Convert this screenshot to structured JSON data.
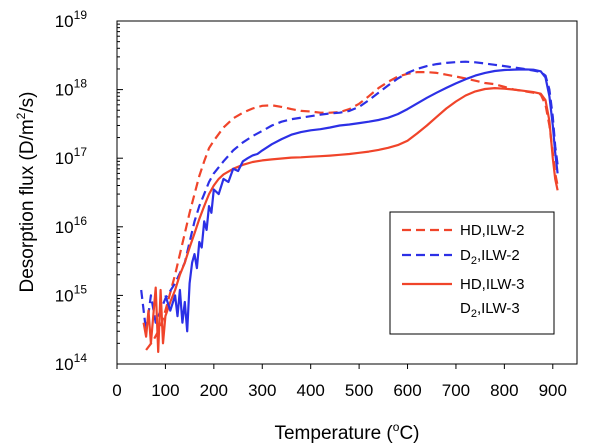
{
  "chart_data": {
    "type": "line",
    "title": "",
    "xlabel_main": "Temperature (",
    "xlabel_sup": "o",
    "xlabel_tail": "C)",
    "ylabel_main": "Desorption flux (D/m",
    "ylabel_sup": "2",
    "ylabel_tail": "/s)",
    "xlim": [
      0,
      950
    ],
    "ylim_log10": [
      14,
      19
    ],
    "yscale": "log",
    "xticks": [
      0,
      100,
      200,
      300,
      400,
      500,
      600,
      700,
      800,
      900
    ],
    "xtick_labels": [
      "0",
      "100",
      "200",
      "300",
      "400",
      "500",
      "600",
      "700",
      "800",
      "900"
    ],
    "yticks_log10": [
      14,
      15,
      16,
      17,
      18,
      19
    ],
    "ytick_base": "10",
    "ytick_exponents": [
      "14",
      "15",
      "16",
      "17",
      "18",
      "19"
    ],
    "grid": false,
    "legend_position": "lower-right",
    "series": [
      {
        "name": "HD,ILW-2",
        "legend_main": "HD,ILW-2",
        "legend_sub": "",
        "legend_tail": "",
        "color": "#f0442a",
        "dash": "dashed",
        "x": [
          60,
          75,
          90,
          100,
          110,
          120,
          130,
          140,
          150,
          160,
          170,
          180,
          190,
          200,
          220,
          240,
          260,
          280,
          300,
          320,
          340,
          360,
          380,
          400,
          420,
          440,
          460,
          480,
          500,
          520,
          540,
          560,
          580,
          600,
          620,
          640,
          660,
          680,
          700,
          720,
          740,
          760,
          780,
          800,
          820,
          840,
          860,
          875,
          885,
          893,
          900,
          905,
          910
        ],
        "y": [
          160000000000000.0,
          220000000000000.0,
          350000000000000.0,
          600000000000000.0,
          1100000000000000.0,
          2000000000000000.0,
          4000000000000000.0,
          8000000000000000.0,
          1.6e+16,
          3e+16,
          5.5e+16,
          9e+16,
          1.4e+17,
          1.8e+17,
          2.8e+17,
          3.8e+17,
          4.6e+17,
          5.3e+17,
          5.8e+17,
          5.9e+17,
          5.6e+17,
          5.2e+17,
          4.9e+17,
          4.8e+17,
          4.6e+17,
          4.6e+17,
          4.7e+17,
          5.2e+17,
          6.2e+17,
          8e+17,
          1.05e+18,
          1.3e+18,
          1.55e+18,
          1.7e+18,
          1.8e+18,
          1.8e+18,
          1.75e+18,
          1.65e+18,
          1.55e+18,
          1.45e+18,
          1.35e+18,
          1.25e+18,
          1.2e+18,
          1.1e+18,
          1e+18,
          9.5e+17,
          9e+17,
          8.5e+17,
          6e+17,
          3e+17,
          1.2e+17,
          6e+16,
          4e+16
        ]
      },
      {
        "name": "D2,ILW-2",
        "legend_main": "D",
        "legend_sub": "2",
        "legend_tail": ",ILW-2",
        "color": "#2c30e6",
        "dash": "dashed",
        "x": [
          50,
          60,
          70,
          80,
          100,
          120,
          140,
          150,
          160,
          170,
          180,
          190,
          200,
          220,
          240,
          260,
          280,
          300,
          320,
          340,
          360,
          380,
          400,
          420,
          440,
          460,
          480,
          500,
          520,
          540,
          560,
          580,
          600,
          620,
          640,
          660,
          680,
          700,
          720,
          740,
          760,
          780,
          800,
          820,
          840,
          860,
          875,
          885,
          893,
          900,
          905,
          910
        ],
        "y": [
          1200000000000000.0,
          300000000000000.0,
          1000000000000000.0,
          400000000000000.0,
          900000000000000.0,
          1500000000000000.0,
          3000000000000000.0,
          6000000000000000.0,
          1.2e+16,
          2e+16,
          3e+16,
          4.5e+16,
          6e+16,
          9e+16,
          1.3e+17,
          1.7e+17,
          2.1e+17,
          2.5e+17,
          3e+17,
          3.4e+17,
          3.7e+17,
          3.9e+17,
          4.1e+17,
          4.3e+17,
          4.5e+17,
          4.6e+17,
          4.9e+17,
          5.6e+17,
          7e+17,
          9e+17,
          1.15e+18,
          1.45e+18,
          1.75e+18,
          2e+18,
          2.2e+18,
          2.35e+18,
          2.45e+18,
          2.52e+18,
          2.55e+18,
          2.5e+18,
          2.4e+18,
          2.3e+18,
          2.2e+18,
          2.1e+18,
          2e+18,
          1.9e+18,
          1.8e+18,
          1.6e+18,
          1e+18,
          4e+17,
          1.5e+17,
          8e+16
        ]
      },
      {
        "name": "HD,ILW-3",
        "legend_main": "HD,ILW-3",
        "legend_sub": "",
        "legend_tail": "",
        "color": "#f0442a",
        "dash": "solid",
        "x": [
          55,
          60,
          65,
          70,
          80,
          85,
          90,
          95,
          100,
          110,
          120,
          130,
          140,
          150,
          160,
          170,
          180,
          190,
          200,
          210,
          220,
          240,
          260,
          280,
          300,
          320,
          340,
          360,
          380,
          400,
          420,
          440,
          460,
          480,
          500,
          520,
          540,
          560,
          580,
          600,
          620,
          640,
          660,
          680,
          700,
          720,
          740,
          760,
          780,
          800,
          820,
          840,
          860,
          875,
          885,
          893,
          900,
          905,
          910
        ],
        "y": [
          400000000000000.0,
          250000000000000.0,
          600000000000000.0,
          200000000000000.0,
          1300000000000000.0,
          150000000000000.0,
          1200000000000000.0,
          200000000000000.0,
          500000000000000.0,
          800000000000000.0,
          1200000000000000.0,
          2000000000000000.0,
          3000000000000000.0,
          5000000000000000.0,
          8000000000000000.0,
          1.3e+16,
          2e+16,
          3e+16,
          4e+16,
          5e+16,
          5.8e+16,
          7e+16,
          8e+16,
          8.8e+16,
          9.3e+16,
          9.6e+16,
          9.9e+16,
          1.02e+17,
          1.03e+17,
          1.05e+17,
          1.07e+17,
          1.09e+17,
          1.12e+17,
          1.15e+17,
          1.2e+17,
          1.25e+17,
          1.32e+17,
          1.42e+17,
          1.55e+17,
          1.8e+17,
          2.3e+17,
          3e+17,
          4e+17,
          5.3e+17,
          6.7e+17,
          8.2e+17,
          9.4e+17,
          1.02e+18,
          1.05e+18,
          1.03e+18,
          1e+18,
          9.6e+17,
          9.2e+17,
          8.7e+17,
          7e+17,
          3.5e+17,
          1e+17,
          5e+16,
          3.4e+16
        ]
      },
      {
        "name": "D2,ILW-3",
        "legend_main": "D",
        "legend_sub": "2",
        "legend_tail": ",ILW-3",
        "color": "#2c30e6",
        "dash": "solid",
        "x": [
          100,
          110,
          120,
          125,
          130,
          135,
          140,
          145,
          150,
          155,
          160,
          165,
          170,
          175,
          180,
          185,
          190,
          195,
          200,
          210,
          220,
          230,
          240,
          250,
          260,
          270,
          280,
          290,
          300,
          320,
          340,
          360,
          380,
          400,
          420,
          440,
          460,
          480,
          500,
          520,
          540,
          560,
          580,
          600,
          620,
          640,
          660,
          680,
          700,
          720,
          740,
          760,
          780,
          800,
          820,
          840,
          860,
          875,
          885,
          893,
          900,
          905,
          910
        ],
        "y": [
          1000000000000000.0,
          600000000000000.0,
          1000000000000000.0,
          500000000000000.0,
          1200000000000000.0,
          400000000000000.0,
          800000000000000.0,
          300000000000000.0,
          1500000000000000.0,
          3000000000000000.0,
          4000000000000000.0,
          2500000000000000.0,
          6000000000000000.0,
          5000000000000000.0,
          1.2e+16,
          9000000000000000.0,
          2e+16,
          1.6e+16,
          3.5e+16,
          3e+16,
          5e+16,
          4.5e+16,
          7e+16,
          6.5e+16,
          9e+16,
          1e+17,
          1.1e+17,
          1.15e+17,
          1.3e+17,
          1.6e+17,
          1.9e+17,
          2.2e+17,
          2.4e+17,
          2.55e+17,
          2.65e+17,
          2.8e+17,
          3e+17,
          3.1e+17,
          3.25e+17,
          3.4e+17,
          3.6e+17,
          3.9e+17,
          4.4e+17,
          5.2e+17,
          6.3e+17,
          7.6e+17,
          9e+17,
          1.06e+18,
          1.23e+18,
          1.42e+18,
          1.6e+18,
          1.75e+18,
          1.87e+18,
          1.93e+18,
          1.96e+18,
          1.97e+18,
          1.95e+18,
          1.85e+18,
          1.5e+18,
          8e+17,
          3e+17,
          1.2e+17,
          6e+16
        ]
      }
    ]
  }
}
